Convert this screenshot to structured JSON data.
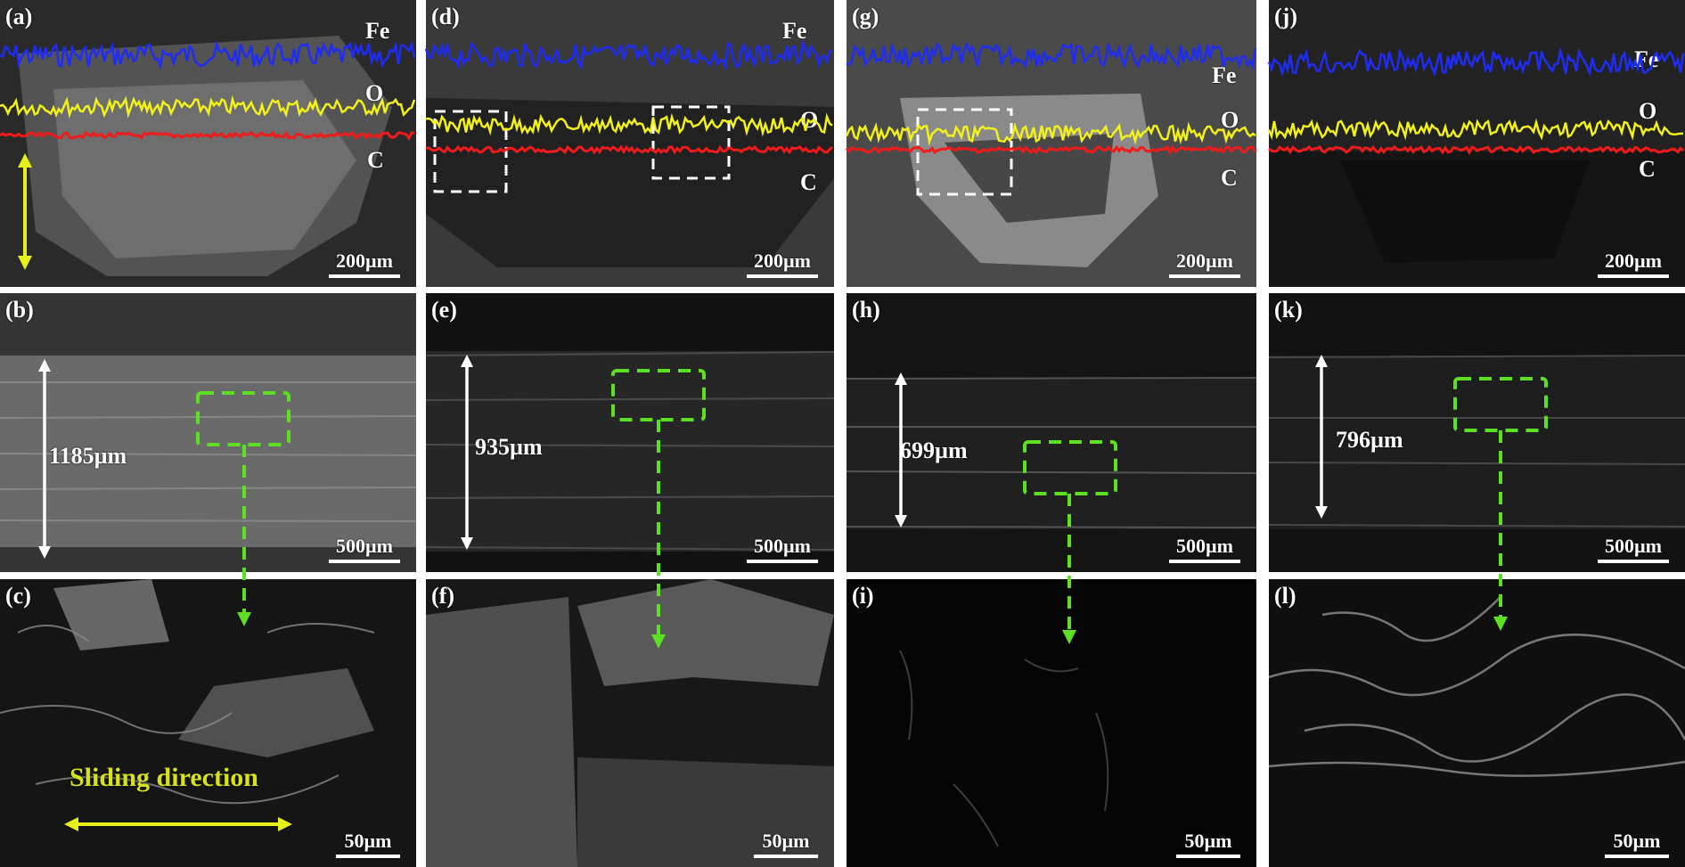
{
  "panels": {
    "a": {
      "label": "(a)",
      "scale": "200µm"
    },
    "b": {
      "label": "(b)",
      "scale": "500µm",
      "width": "1185µm"
    },
    "c": {
      "label": "(c)",
      "scale": "50µm"
    },
    "d": {
      "label": "(d)",
      "scale": "200µm"
    },
    "e": {
      "label": "(e)",
      "scale": "500µm",
      "width": "935µm"
    },
    "f": {
      "label": "(f)",
      "scale": "50µm"
    },
    "g": {
      "label": "(g)",
      "scale": "200µm"
    },
    "h": {
      "label": "(h)",
      "scale": "500µm",
      "width": "699µm"
    },
    "i": {
      "label": "(i)",
      "scale": "50µm"
    },
    "j": {
      "label": "(j)",
      "scale": "200µm"
    },
    "k": {
      "label": "(k)",
      "scale": "500µm",
      "width": "796µm"
    },
    "l": {
      "label": "(l)",
      "scale": "50µm"
    }
  },
  "elements": {
    "fe": "Fe",
    "o": "O",
    "c": "C"
  },
  "sliding_label": "Sliding direction",
  "colors": {
    "fe": "#1f2cf5",
    "o": "#f2f21a",
    "c": "#f21a1a",
    "guide": "#5ee022",
    "arrow": "#e8f01a"
  }
}
